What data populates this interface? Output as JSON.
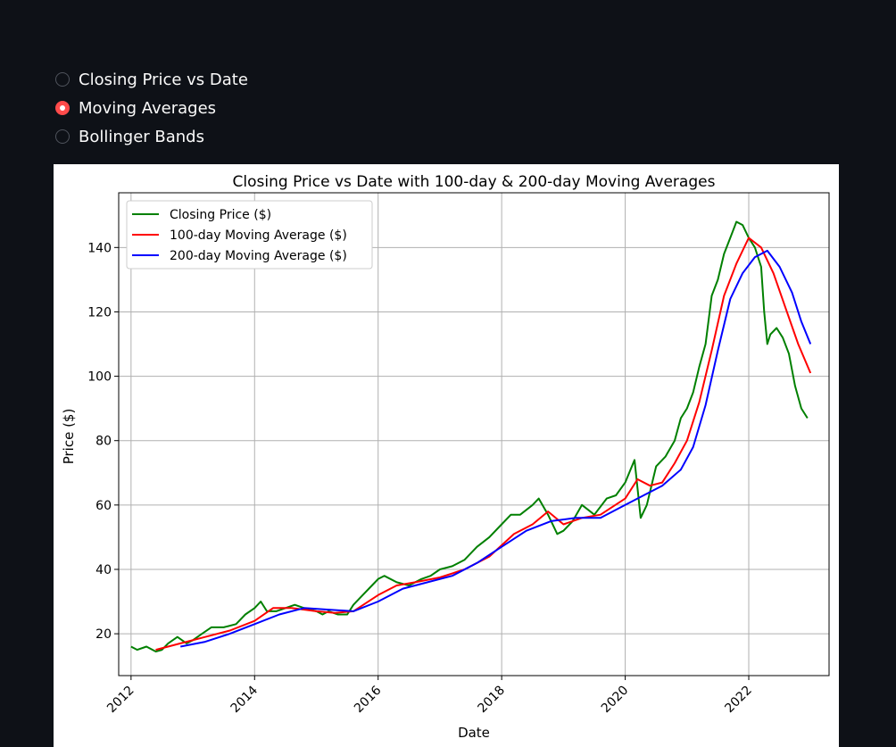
{
  "radio": {
    "options": [
      {
        "label": "Closing Price vs Date",
        "selected": false
      },
      {
        "label": "Moving Averages",
        "selected": true
      },
      {
        "label": "Bollinger Bands",
        "selected": false
      }
    ],
    "accent": "#ff4b4b"
  },
  "chart_data": {
    "type": "line",
    "title": "Closing Price vs Date with 100-day & 200-day Moving Averages",
    "xlabel": "Date",
    "ylabel": "Price ($)",
    "xlim": [
      2011.8,
      2023.3
    ],
    "ylim": [
      7,
      157
    ],
    "xticks": [
      2012,
      2014,
      2016,
      2018,
      2020,
      2022
    ],
    "yticks": [
      20,
      40,
      60,
      80,
      100,
      120,
      140
    ],
    "grid": true,
    "legend_position": "upper left",
    "series": [
      {
        "name": "Closing Price ($)",
        "color": "#008000",
        "x": [
          2012.0,
          2012.1,
          2012.25,
          2012.4,
          2012.5,
          2012.6,
          2012.75,
          2012.9,
          2013.0,
          2013.15,
          2013.3,
          2013.5,
          2013.7,
          2013.85,
          2014.0,
          2014.1,
          2014.2,
          2014.35,
          2014.5,
          2014.65,
          2014.8,
          2015.0,
          2015.1,
          2015.2,
          2015.35,
          2015.5,
          2015.6,
          2015.75,
          2015.9,
          2016.0,
          2016.1,
          2016.3,
          2016.5,
          2016.7,
          2016.85,
          2017.0,
          2017.2,
          2017.4,
          2017.6,
          2017.8,
          2018.0,
          2018.15,
          2018.3,
          2018.5,
          2018.6,
          2018.75,
          2018.9,
          2019.0,
          2019.15,
          2019.3,
          2019.5,
          2019.7,
          2019.85,
          2020.0,
          2020.15,
          2020.25,
          2020.35,
          2020.5,
          2020.65,
          2020.8,
          2020.9,
          2021.0,
          2021.1,
          2021.2,
          2021.3,
          2021.4,
          2021.5,
          2021.6,
          2021.7,
          2021.8,
          2021.9,
          2022.0,
          2022.1,
          2022.2,
          2022.25,
          2022.3,
          2022.35,
          2022.45,
          2022.55,
          2022.65,
          2022.75,
          2022.85,
          2022.95
        ],
        "values": [
          16,
          15,
          16,
          14.5,
          15,
          17,
          19,
          17,
          18,
          20,
          22,
          22,
          23,
          26,
          28,
          30,
          27,
          27,
          28,
          29,
          28,
          27,
          26,
          27,
          26,
          26,
          29,
          32,
          35,
          37,
          38,
          36,
          35,
          37,
          38,
          40,
          41,
          43,
          47,
          50,
          54,
          57,
          57,
          60,
          62,
          57,
          51,
          52,
          55,
          60,
          57,
          62,
          63,
          67,
          74,
          56,
          60,
          72,
          75,
          80,
          87,
          90,
          95,
          103,
          110,
          125,
          130,
          138,
          143,
          148,
          147,
          143,
          140,
          134,
          120,
          110,
          113,
          115,
          112,
          107,
          97,
          90,
          87
        ]
      },
      {
        "name": "100-day Moving Average ($)",
        "color": "#ff0000",
        "x": [
          2012.4,
          2012.8,
          2013.2,
          2013.6,
          2014.0,
          2014.3,
          2014.6,
          2015.0,
          2015.3,
          2015.6,
          2016.0,
          2016.3,
          2016.6,
          2017.0,
          2017.4,
          2017.8,
          2018.2,
          2018.5,
          2018.75,
          2019.0,
          2019.3,
          2019.6,
          2020.0,
          2020.2,
          2020.4,
          2020.6,
          2020.8,
          2021.0,
          2021.2,
          2021.4,
          2021.6,
          2021.8,
          2022.0,
          2022.2,
          2022.4,
          2022.6,
          2022.8,
          2023.0
        ],
        "values": [
          15,
          17,
          19,
          21,
          24,
          28,
          28,
          27,
          26.5,
          27,
          32,
          35,
          36,
          37.5,
          40,
          44,
          51,
          54,
          58,
          54,
          56,
          57,
          62,
          68,
          66,
          67,
          73,
          80,
          92,
          108,
          125,
          135,
          143,
          140,
          132,
          121,
          110,
          101
        ]
      },
      {
        "name": "200-day Moving Average ($)",
        "color": "#0000ff",
        "x": [
          2012.8,
          2013.2,
          2013.6,
          2014.0,
          2014.4,
          2014.8,
          2015.2,
          2015.6,
          2016.0,
          2016.4,
          2016.8,
          2017.2,
          2017.6,
          2018.0,
          2018.4,
          2018.8,
          2019.2,
          2019.6,
          2020.0,
          2020.3,
          2020.6,
          2020.9,
          2021.1,
          2021.3,
          2021.5,
          2021.7,
          2021.9,
          2022.1,
          2022.3,
          2022.5,
          2022.7,
          2022.85,
          2023.0
        ],
        "values": [
          16,
          17.5,
          20,
          23,
          26,
          28,
          27.5,
          27,
          30,
          34,
          36,
          38,
          42,
          47,
          52,
          55,
          56,
          56,
          60,
          63,
          66,
          71,
          78,
          91,
          108,
          124,
          132,
          137,
          139,
          134,
          126,
          117,
          110
        ]
      }
    ]
  }
}
